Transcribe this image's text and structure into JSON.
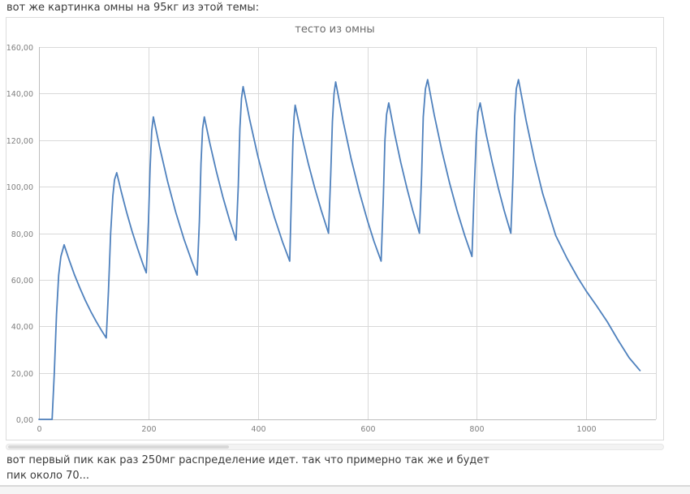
{
  "post": {
    "top_text": "вот же картинка омны на 95кг из этой темы:",
    "bottom_text_line1": "вот первый пик как раз 250мг распределение идет. так что примерно так же и будет",
    "bottom_text_line2": "пик около 70..."
  },
  "chart_data": {
    "type": "line",
    "title": "тесто из омны",
    "xlabel": "",
    "ylabel": "",
    "xlim": [
      0,
      1127
    ],
    "ylim": [
      0,
      160
    ],
    "grid": true,
    "legend": false,
    "colors": {
      "series": "#4f81bd",
      "grid": "#d9d9d9",
      "axis": "#bdbdbd",
      "tick_labels": "#7f7f7f",
      "title": "#6b6b6b"
    },
    "x_ticks": [
      {
        "value": 0,
        "label": "0"
      },
      {
        "value": 200,
        "label": "200"
      },
      {
        "value": 400,
        "label": "400"
      },
      {
        "value": 600,
        "label": "600"
      },
      {
        "value": 800,
        "label": "800"
      },
      {
        "value": 1000,
        "label": "1000"
      }
    ],
    "y_ticks": [
      {
        "value": 0,
        "label": "0,00"
      },
      {
        "value": 20,
        "label": "20,00"
      },
      {
        "value": 40,
        "label": "40,00"
      },
      {
        "value": 60,
        "label": "60,00"
      },
      {
        "value": 80,
        "label": "80,00"
      },
      {
        "value": 100,
        "label": "100,00"
      },
      {
        "value": 120,
        "label": "120,00"
      },
      {
        "value": 140,
        "label": "140,00"
      },
      {
        "value": 160,
        "label": "160,00"
      }
    ],
    "annotations": {
      "peaks": [
        [
          46,
          75
        ],
        [
          142,
          106
        ],
        [
          209,
          130
        ],
        [
          302,
          130
        ],
        [
          373,
          143
        ],
        [
          468,
          135
        ],
        [
          542,
          145
        ],
        [
          639,
          136
        ],
        [
          710,
          146
        ],
        [
          806,
          136
        ],
        [
          876,
          146
        ]
      ],
      "troughs": [
        [
          123,
          35
        ],
        [
          196,
          63
        ],
        [
          289,
          62
        ],
        [
          360,
          77
        ],
        [
          458,
          68
        ],
        [
          529,
          80
        ],
        [
          625,
          68
        ],
        [
          695,
          80
        ],
        [
          791,
          70
        ],
        [
          862,
          80
        ]
      ],
      "end_value": 21
    },
    "series": [
      {
        "name": "тесто из омны",
        "color": "#4f81bd",
        "points": [
          [
            0,
            0
          ],
          [
            24,
            0
          ],
          [
            28,
            20
          ],
          [
            32,
            45
          ],
          [
            36,
            62
          ],
          [
            40,
            70
          ],
          [
            46,
            75
          ],
          [
            55,
            68.6
          ],
          [
            65,
            62.1
          ],
          [
            75,
            56.3
          ],
          [
            85,
            51
          ],
          [
            95,
            46.2
          ],
          [
            105,
            41.9
          ],
          [
            115,
            37.9
          ],
          [
            123,
            35
          ],
          [
            127,
            55
          ],
          [
            131,
            80
          ],
          [
            135,
            96
          ],
          [
            138,
            103
          ],
          [
            142,
            106
          ],
          [
            150,
            98.1
          ],
          [
            160,
            89.1
          ],
          [
            170,
            80.9
          ],
          [
            180,
            73.5
          ],
          [
            190,
            66.7
          ],
          [
            196,
            63
          ],
          [
            200,
            85
          ],
          [
            203,
            108
          ],
          [
            206,
            124
          ],
          [
            209,
            130
          ],
          [
            220,
            117.4
          ],
          [
            235,
            102.2
          ],
          [
            250,
            88.9
          ],
          [
            265,
            77.4
          ],
          [
            280,
            67.4
          ],
          [
            289,
            62
          ],
          [
            293,
            85
          ],
          [
            296,
            110
          ],
          [
            299,
            125
          ],
          [
            302,
            130
          ],
          [
            312,
            118.8
          ],
          [
            324,
            106.6
          ],
          [
            336,
            95.5
          ],
          [
            348,
            85.7
          ],
          [
            360,
            77
          ],
          [
            364,
            100
          ],
          [
            367,
            125
          ],
          [
            370,
            138
          ],
          [
            373,
            143
          ],
          [
            385,
            128.8
          ],
          [
            400,
            113
          ],
          [
            415,
            99.1
          ],
          [
            430,
            86.9
          ],
          [
            445,
            76.2
          ],
          [
            458,
            68
          ],
          [
            461,
            95
          ],
          [
            464,
            120
          ],
          [
            466,
            130
          ],
          [
            468,
            135
          ],
          [
            480,
            121.8
          ],
          [
            492,
            109.9
          ],
          [
            504,
            99.2
          ],
          [
            516,
            89.5
          ],
          [
            529,
            80
          ],
          [
            533,
            105
          ],
          [
            536,
            128
          ],
          [
            539,
            140
          ],
          [
            542,
            145
          ],
          [
            555,
            128.8
          ],
          [
            570,
            112.2
          ],
          [
            585,
            98
          ],
          [
            600,
            85.5
          ],
          [
            612,
            76.5
          ],
          [
            625,
            68
          ],
          [
            629,
            95
          ],
          [
            632,
            120
          ],
          [
            635,
            131
          ],
          [
            639,
            136
          ],
          [
            650,
            122.5
          ],
          [
            661,
            110.4
          ],
          [
            672,
            99.5
          ],
          [
            683,
            89.6
          ],
          [
            695,
            80
          ],
          [
            699,
            105
          ],
          [
            702,
            130
          ],
          [
            706,
            142
          ],
          [
            710,
            146
          ],
          [
            722,
            130.9
          ],
          [
            736,
            115.5
          ],
          [
            750,
            101.6
          ],
          [
            764,
            89.5
          ],
          [
            778,
            78.9
          ],
          [
            791,
            70
          ],
          [
            795,
            98
          ],
          [
            799,
            122
          ],
          [
            802,
            132
          ],
          [
            806,
            136
          ],
          [
            817,
            122.5
          ],
          [
            828,
            110.4
          ],
          [
            839,
            99.5
          ],
          [
            850,
            89.6
          ],
          [
            862,
            80
          ],
          [
            866,
            105
          ],
          [
            869,
            130
          ],
          [
            872,
            142
          ],
          [
            876,
            146
          ],
          [
            890,
            128.3
          ],
          [
            905,
            111.7
          ],
          [
            920,
            97.2
          ],
          [
            944,
            79
          ],
          [
            965,
            69
          ],
          [
            984,
            61
          ],
          [
            1000,
            55
          ],
          [
            1018,
            49
          ],
          [
            1038,
            42
          ],
          [
            1058,
            34
          ],
          [
            1078,
            26.5
          ],
          [
            1098,
            21
          ]
        ]
      }
    ]
  }
}
